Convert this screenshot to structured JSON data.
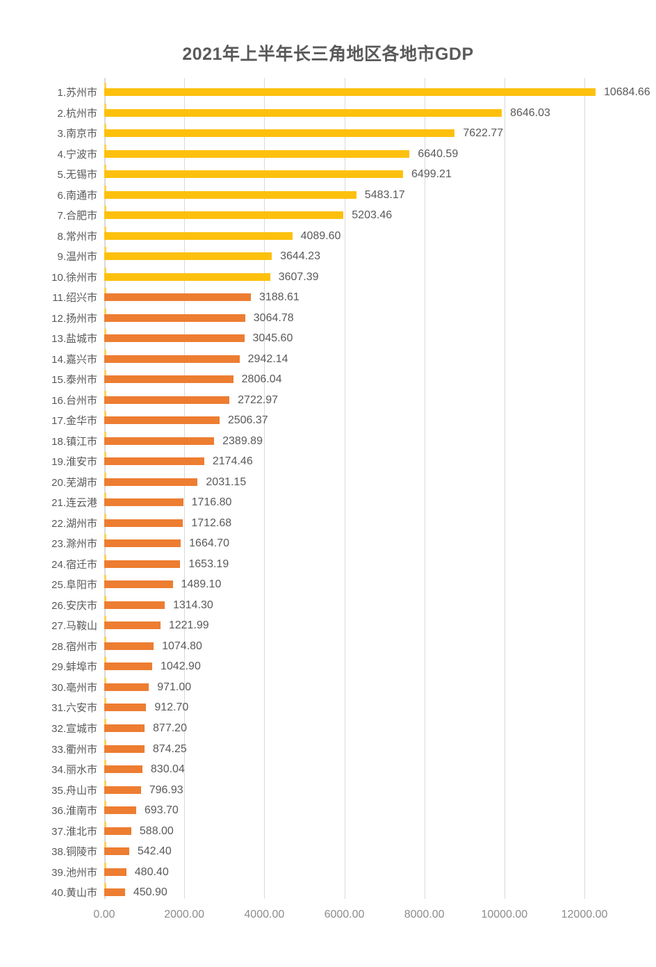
{
  "title": "2021年上半年长三角地区各地市GDP",
  "chart_data": {
    "type": "bar",
    "orientation": "horizontal",
    "title": "2021年上半年长三角地区各地市GDP",
    "categories": [
      "1.苏州市",
      "2.杭州市",
      "3.南京市",
      "4.宁波市",
      "5.无锡市",
      "6.南通市",
      "7.合肥市",
      "8.常州市",
      "9.温州市",
      "10.徐州市",
      "11.绍兴市",
      "12.扬州市",
      "13.盐城市",
      "14.嘉兴市",
      "15.泰州市",
      "16.台州市",
      "17.金华市",
      "18.镇江市",
      "19.淮安市",
      "20.芜湖市",
      "21.连云港",
      "22.湖州市",
      "23.滁州市",
      "24.宿迁市",
      "25.阜阳市",
      "26.安庆市",
      "27.马鞍山",
      "28.宿州市",
      "29.蚌埠市",
      "30.亳州市",
      "31.六安市",
      "32.宣城市",
      "33.衢州市",
      "34.丽水市",
      "35.舟山市",
      "36.淮南市",
      "37.淮北市",
      "38.铜陵市",
      "39.池州市",
      "40.黄山市"
    ],
    "values": [
      10684.66,
      8646.03,
      7622.77,
      6640.59,
      6499.21,
      5483.17,
      5203.46,
      4089.6,
      3644.23,
      3607.39,
      3188.61,
      3064.78,
      3045.6,
      2942.14,
      2806.04,
      2722.97,
      2506.37,
      2389.89,
      2174.46,
      2031.15,
      1716.8,
      1712.68,
      1664.7,
      1653.19,
      1489.1,
      1314.3,
      1221.99,
      1074.8,
      1042.9,
      971.0,
      912.7,
      877.2,
      874.25,
      830.04,
      796.93,
      693.7,
      588.0,
      542.4,
      480.4,
      450.9
    ],
    "value_labels": [
      "10684.66",
      "8646.03",
      "7622.77",
      "6640.59",
      "6499.21",
      "5483.17",
      "5203.46",
      "4089.60",
      "3644.23",
      "3607.39",
      "3188.61",
      "3064.78",
      "3045.60",
      "2942.14",
      "2806.04",
      "2722.97",
      "2506.37",
      "2389.89",
      "2174.46",
      "2031.15",
      "1716.80",
      "1712.68",
      "1664.70",
      "1653.19",
      "1489.10",
      "1314.30",
      "1221.99",
      "1074.80",
      "1042.90",
      "971.00",
      "912.70",
      "877.20",
      "874.25",
      "830.04",
      "796.93",
      "693.70",
      "588.00",
      "542.40",
      "480.40",
      "450.90"
    ],
    "xlim": [
      0,
      12000
    ],
    "xticks": [
      "0.00",
      "2000.00",
      "4000.00",
      "6000.00",
      "8000.00",
      "10000.00",
      "12000.00"
    ],
    "grid": true,
    "legend": "none",
    "top10_count": 10,
    "colors": {
      "top10_bar": "#FDC00D",
      "other_bar": "#ED7D31",
      "tick_marker": "#FCD257",
      "gridline": "#D9D9D9",
      "title_text": "#595959",
      "label_text": "#595959",
      "axis_text": "#8C8C8C"
    }
  }
}
